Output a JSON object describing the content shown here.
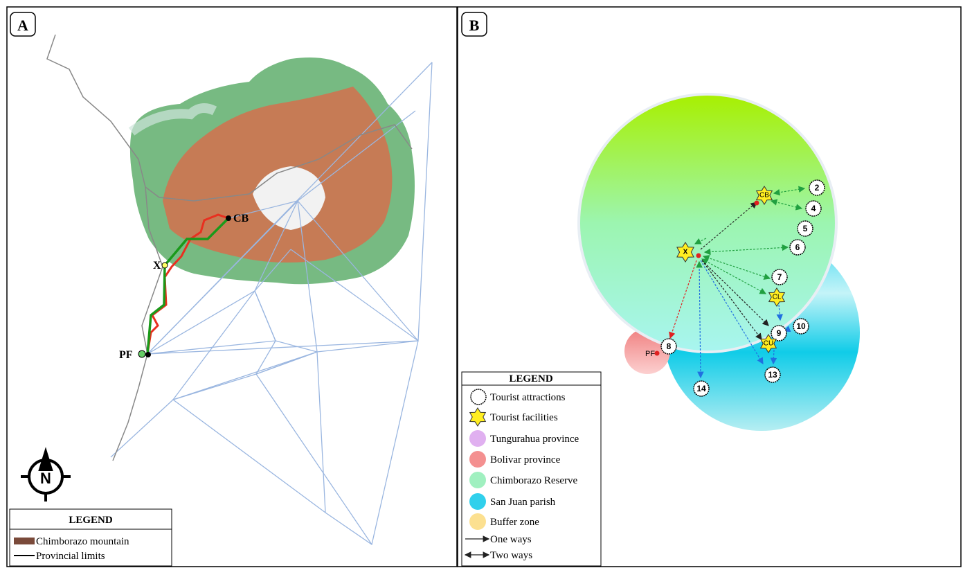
{
  "panel_a": {
    "label": "A",
    "places": [
      "CB",
      "X",
      "PF"
    ],
    "compass": "N",
    "legend": {
      "title": "LEGEND",
      "items": [
        "Chimborazo mountain",
        "Provincial limits"
      ]
    }
  },
  "panel_b": {
    "label": "B",
    "attractions": [
      "2",
      "4",
      "5",
      "6",
      "7",
      "8",
      "9",
      "10",
      "13",
      "14"
    ],
    "facilities": [
      "CB",
      "X",
      "CL",
      "CU"
    ],
    "marker": "PF",
    "legend": {
      "title": "LEGEND",
      "items": [
        "Tourist attractions",
        "Tourist facilities",
        "Tungurahua province",
        "Bolivar province",
        "Chimborazo Reserve",
        "San Juan parish",
        "Buffer zone",
        "One ways",
        "Two ways"
      ]
    }
  }
}
